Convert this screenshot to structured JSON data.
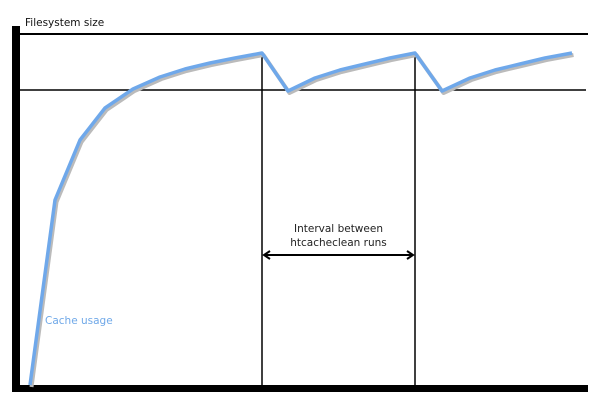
{
  "diagram": {
    "y_axis_label": "Filesystem size",
    "interval_label_line1": "Interval between",
    "interval_label_line2": "htcacheclean runs",
    "series_label": "Cache usage",
    "colors": {
      "curve": "#6fa8ea",
      "curve_shadow": "#bbbbbb",
      "axes": "#000000"
    }
  }
}
